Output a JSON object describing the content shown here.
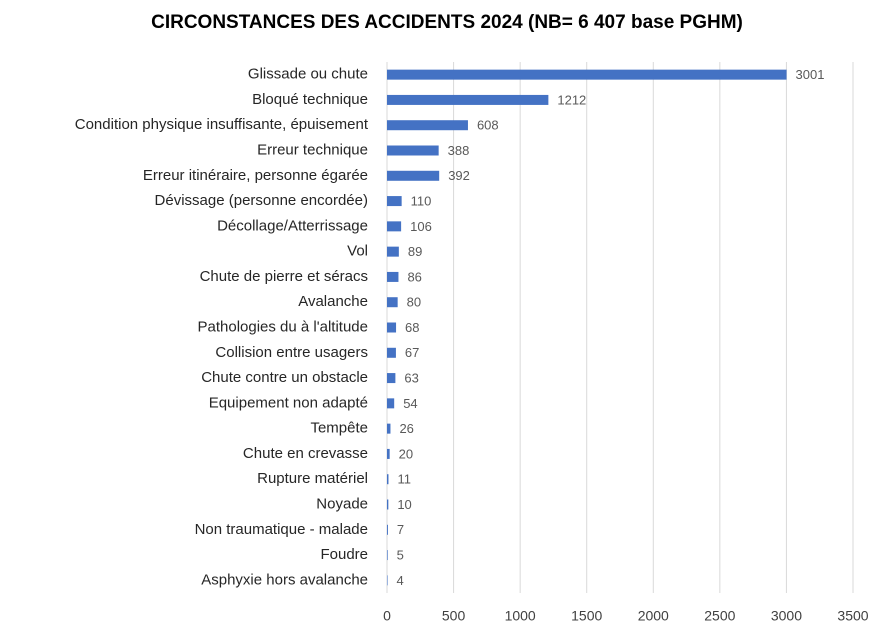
{
  "chart_data": {
    "type": "bar",
    "orientation": "horizontal",
    "title": "CIRCONSTANCES DES ACCIDENTS 2024 (NB= 6 407 base PGHM)",
    "categories": [
      "Glissade ou chute",
      "Bloqué technique",
      "Condition physique insuffisante, épuisement",
      "Erreur technique",
      "Erreur itinéraire, personne égarée",
      "Dévissage (personne encordée)",
      "Décollage/Atterrissage",
      "Vol",
      "Chute de pierre et séracs",
      "Avalanche",
      "Pathologies du à l'altitude",
      "Collision entre usagers",
      "Chute contre un obstacle",
      "Equipement non adapté",
      "Tempête",
      "Chute en crevasse",
      "Rupture matériel",
      "Noyade",
      "Non traumatique - malade",
      "Foudre",
      "Asphyxie hors avalanche"
    ],
    "values": [
      3001,
      1212,
      608,
      388,
      392,
      110,
      106,
      89,
      86,
      80,
      68,
      67,
      63,
      54,
      26,
      20,
      11,
      10,
      7,
      5,
      4
    ],
    "color": "#4472c4",
    "xlim": [
      0,
      3500
    ],
    "xticks": [
      0,
      500,
      1000,
      1500,
      2000,
      2500,
      3000,
      3500
    ],
    "grid": true
  }
}
